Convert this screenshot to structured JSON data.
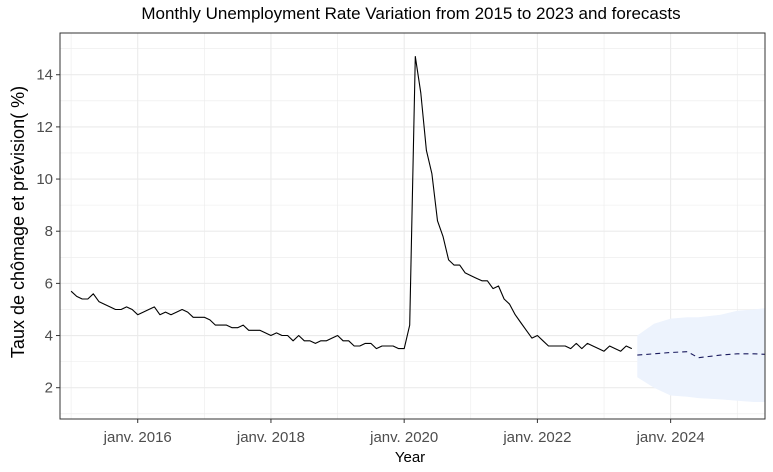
{
  "chart_data": {
    "type": "line",
    "title": "Monthly Unemployment Rate Variation from 2015 to 2023 and forecasts",
    "xlabel": "Year",
    "ylabel": "Taux de chômage et prévision( %)",
    "x_tick_labels": [
      "janv. 2016",
      "janv. 2018",
      "janv. 2020",
      "janv. 2022",
      "janv. 2024"
    ],
    "x_ticks": [
      "2016-01",
      "2018-01",
      "2020-01",
      "2022-01",
      "2024-01"
    ],
    "y_ticks": [
      2,
      4,
      6,
      8,
      10,
      12,
      14
    ],
    "y_tick_labels": [
      "2",
      "4",
      "6",
      "8",
      "10",
      "12",
      "14"
    ],
    "xlim": [
      "2014-11",
      "2025-06"
    ],
    "ylim": [
      0.8,
      15.6
    ],
    "grid": true,
    "colors": {
      "actual": "#000000",
      "forecast": "#1a1a5e",
      "band": "#edf3fd",
      "grid": "#ebebeb",
      "panel_border": "#333333"
    },
    "series": [
      {
        "style": "solid",
        "x": [
          "2015-01",
          "2015-02",
          "2015-03",
          "2015-04",
          "2015-05",
          "2015-06",
          "2015-07",
          "2015-08",
          "2015-09",
          "2015-10",
          "2015-11",
          "2015-12",
          "2016-01",
          "2016-02",
          "2016-03",
          "2016-04",
          "2016-05",
          "2016-06",
          "2016-07",
          "2016-08",
          "2016-09",
          "2016-10",
          "2016-11",
          "2016-12",
          "2017-01",
          "2017-02",
          "2017-03",
          "2017-04",
          "2017-05",
          "2017-06",
          "2017-07",
          "2017-08",
          "2017-09",
          "2017-10",
          "2017-11",
          "2017-12",
          "2018-01",
          "2018-02",
          "2018-03",
          "2018-04",
          "2018-05",
          "2018-06",
          "2018-07",
          "2018-08",
          "2018-09",
          "2018-10",
          "2018-11",
          "2018-12",
          "2019-01",
          "2019-02",
          "2019-03",
          "2019-04",
          "2019-05",
          "2019-06",
          "2019-07",
          "2019-08",
          "2019-09",
          "2019-10",
          "2019-11",
          "2019-12",
          "2020-01",
          "2020-02",
          "2020-03",
          "2020-04",
          "2020-05",
          "2020-06",
          "2020-07",
          "2020-08",
          "2020-09",
          "2020-10",
          "2020-11",
          "2020-12",
          "2021-01",
          "2021-02",
          "2021-03",
          "2021-04",
          "2021-05",
          "2021-06",
          "2021-07",
          "2021-08",
          "2021-09",
          "2021-10",
          "2021-11",
          "2021-12",
          "2022-01",
          "2022-02",
          "2022-03",
          "2022-04",
          "2022-05",
          "2022-06",
          "2022-07",
          "2022-08",
          "2022-09",
          "2022-10",
          "2022-11",
          "2022-12",
          "2023-01",
          "2023-02",
          "2023-03",
          "2023-04",
          "2023-05",
          "2023-06"
        ],
        "values": [
          5.7,
          5.5,
          5.4,
          5.4,
          5.6,
          5.3,
          5.2,
          5.1,
          5.0,
          5.0,
          5.1,
          5.0,
          4.8,
          4.9,
          5.0,
          5.1,
          4.8,
          4.9,
          4.8,
          4.9,
          5.0,
          4.9,
          4.7,
          4.7,
          4.7,
          4.6,
          4.4,
          4.4,
          4.4,
          4.3,
          4.3,
          4.4,
          4.2,
          4.2,
          4.2,
          4.1,
          4.0,
          4.1,
          4.0,
          4.0,
          3.8,
          4.0,
          3.8,
          3.8,
          3.7,
          3.8,
          3.8,
          3.9,
          4.0,
          3.8,
          3.8,
          3.6,
          3.6,
          3.7,
          3.7,
          3.5,
          3.6,
          3.6,
          3.6,
          3.5,
          3.5,
          4.4,
          14.7,
          13.3,
          11.1,
          10.2,
          8.4,
          7.8,
          6.9,
          6.7,
          6.7,
          6.4,
          6.3,
          6.2,
          6.1,
          6.1,
          5.8,
          5.9,
          5.4,
          5.2,
          4.8,
          4.5,
          4.2,
          3.9,
          4.0,
          3.8,
          3.6,
          3.6,
          3.6,
          3.6,
          3.5,
          3.7,
          3.5,
          3.7,
          3.6,
          3.5,
          3.4,
          3.6,
          3.5,
          3.4,
          3.6,
          3.5
        ]
      },
      {
        "style": "dashed",
        "x": [
          "2023-07",
          "2023-10",
          "2024-01",
          "2024-04",
          "2024-06",
          "2024-10",
          "2025-01",
          "2025-04",
          "2025-06"
        ],
        "values": [
          3.25,
          3.3,
          3.35,
          3.38,
          3.15,
          3.25,
          3.3,
          3.3,
          3.28
        ],
        "lower": [
          2.4,
          2.0,
          1.7,
          1.65,
          1.6,
          1.55,
          1.5,
          1.45,
          1.45
        ],
        "upper": [
          4.0,
          4.45,
          4.65,
          4.7,
          4.7,
          4.8,
          4.95,
          5.0,
          5.05
        ]
      }
    ]
  }
}
